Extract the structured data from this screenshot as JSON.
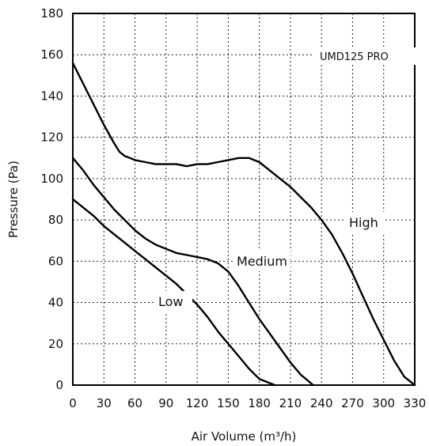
{
  "chart_data": {
    "type": "line",
    "title": "",
    "xlabel": "Air Volume (m³/h)",
    "ylabel": "Pressure (Pa)",
    "xlim": [
      0,
      330
    ],
    "ylim": [
      0,
      180
    ],
    "x_ticks": [
      "0",
      "30",
      "60",
      "90",
      "120",
      "150",
      "180",
      "210",
      "240",
      "270",
      "300",
      "330"
    ],
    "y_ticks": [
      "0",
      "20",
      "40",
      "60",
      "80",
      "100",
      "120",
      "140",
      "160",
      "180"
    ],
    "grid": true,
    "annotation": "UMD125 PRO",
    "series": [
      {
        "name": "High",
        "x": [
          0,
          10,
          20,
          30,
          40,
          45,
          50,
          55,
          60,
          70,
          80,
          90,
          100,
          110,
          120,
          130,
          140,
          150,
          160,
          170,
          180,
          190,
          200,
          210,
          220,
          230,
          240,
          250,
          260,
          270,
          280,
          290,
          300,
          310,
          320,
          330
        ],
        "y": [
          156,
          146,
          136,
          126,
          117,
          113,
          111,
          110,
          109,
          108,
          107,
          107,
          107,
          106,
          107,
          107,
          108,
          109,
          110,
          110,
          108,
          104,
          100,
          96,
          91,
          86,
          80,
          73,
          64,
          54,
          43,
          32,
          22,
          12,
          4,
          0
        ]
      },
      {
        "name": "Medium",
        "x": [
          0,
          10,
          20,
          30,
          40,
          50,
          60,
          70,
          80,
          90,
          100,
          110,
          120,
          130,
          140,
          150,
          160,
          170,
          180,
          190,
          200,
          210,
          220,
          232
        ],
        "y": [
          110,
          104,
          97,
          91,
          85,
          80,
          75,
          71,
          68,
          66,
          64,
          63,
          62,
          61,
          59,
          55,
          48,
          40,
          32,
          25,
          18,
          11,
          5,
          0
        ]
      },
      {
        "name": "Low",
        "x": [
          0,
          10,
          20,
          30,
          40,
          50,
          60,
          70,
          80,
          90,
          100,
          110,
          120,
          130,
          140,
          150,
          160,
          170,
          180,
          195
        ],
        "y": [
          90,
          86,
          82,
          77,
          73,
          69,
          65,
          61,
          57,
          53,
          49,
          44,
          39,
          33,
          26,
          20,
          14,
          8,
          3,
          0
        ]
      }
    ]
  }
}
